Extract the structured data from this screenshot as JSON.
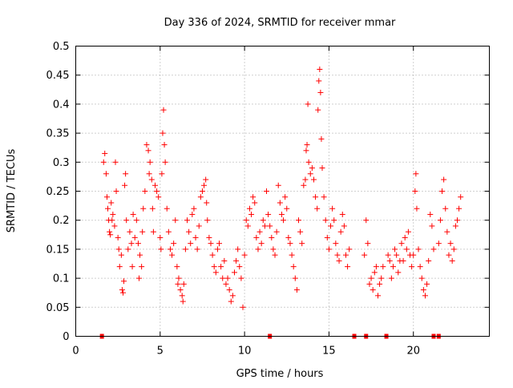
{
  "chart_data": {
    "type": "scatter",
    "title": "Day 336 of 2024, SRMTID for receiver mmar",
    "xlabel": "GPS time / hours",
    "ylabel": "SRMTID / TECUs",
    "xlim": [
      0,
      24.5
    ],
    "ylim": [
      0,
      0.5
    ],
    "x_ticks": [
      0,
      5,
      10,
      15,
      20
    ],
    "x_tick_labels": [
      "0",
      "5",
      "10",
      "15",
      "20"
    ],
    "y_ticks": [
      0,
      0.05,
      0.1,
      0.15,
      0.2,
      0.25,
      0.3,
      0.35,
      0.4,
      0.45,
      0.5
    ],
    "y_tick_labels": [
      "0",
      "0.05",
      "0.1",
      "0.15",
      "0.2",
      "0.25",
      "0.3",
      "0.35",
      "0.4",
      "0.45",
      "0.5"
    ],
    "grid": true,
    "marker": "+",
    "color": "#ff0000",
    "series": [
      {
        "name": "SRMTID",
        "points": [
          [
            1.65,
            0.3
          ],
          [
            1.72,
            0.315
          ],
          [
            1.8,
            0.28
          ],
          [
            1.85,
            0.24
          ],
          [
            1.9,
            0.22
          ],
          [
            1.95,
            0.2
          ],
          [
            2.0,
            0.18
          ],
          [
            2.05,
            0.175
          ],
          [
            2.1,
            0.23
          ],
          [
            2.15,
            0.2
          ],
          [
            2.2,
            0.21
          ],
          [
            2.3,
            0.19
          ],
          [
            2.35,
            0.3
          ],
          [
            2.4,
            0.25
          ],
          [
            2.5,
            0.17
          ],
          [
            2.55,
            0.15
          ],
          [
            2.6,
            0.12
          ],
          [
            2.7,
            0.14
          ],
          [
            2.75,
            0.08
          ],
          [
            2.8,
            0.075
          ],
          [
            2.85,
            0.095
          ],
          [
            2.9,
            0.26
          ],
          [
            2.95,
            0.28
          ],
          [
            3.0,
            0.2
          ],
          [
            3.1,
            0.15
          ],
          [
            3.2,
            0.18
          ],
          [
            3.3,
            0.16
          ],
          [
            3.35,
            0.12
          ],
          [
            3.4,
            0.21
          ],
          [
            3.5,
            0.17
          ],
          [
            3.6,
            0.2
          ],
          [
            3.7,
            0.16
          ],
          [
            3.75,
            0.1
          ],
          [
            3.8,
            0.14
          ],
          [
            3.9,
            0.12
          ],
          [
            3.95,
            0.18
          ],
          [
            4.0,
            0.22
          ],
          [
            4.1,
            0.25
          ],
          [
            4.2,
            0.33
          ],
          [
            4.3,
            0.32
          ],
          [
            4.35,
            0.28
          ],
          [
            4.4,
            0.3
          ],
          [
            4.5,
            0.27
          ],
          [
            4.55,
            0.22
          ],
          [
            4.6,
            0.18
          ],
          [
            4.7,
            0.26
          ],
          [
            4.8,
            0.25
          ],
          [
            4.9,
            0.24
          ],
          [
            5.0,
            0.17
          ],
          [
            5.05,
            0.15
          ],
          [
            5.1,
            0.28
          ],
          [
            5.15,
            0.35
          ],
          [
            5.2,
            0.39
          ],
          [
            5.25,
            0.33
          ],
          [
            5.3,
            0.3
          ],
          [
            5.4,
            0.22
          ],
          [
            5.5,
            0.18
          ],
          [
            5.6,
            0.15
          ],
          [
            5.7,
            0.14
          ],
          [
            5.8,
            0.16
          ],
          [
            5.9,
            0.2
          ],
          [
            6.0,
            0.12
          ],
          [
            6.05,
            0.09
          ],
          [
            6.1,
            0.1
          ],
          [
            6.2,
            0.08
          ],
          [
            6.3,
            0.07
          ],
          [
            6.35,
            0.06
          ],
          [
            6.4,
            0.09
          ],
          [
            6.5,
            0.15
          ],
          [
            6.6,
            0.2
          ],
          [
            6.7,
            0.18
          ],
          [
            6.8,
            0.16
          ],
          [
            6.9,
            0.21
          ],
          [
            7.0,
            0.22
          ],
          [
            7.1,
            0.17
          ],
          [
            7.2,
            0.15
          ],
          [
            7.3,
            0.19
          ],
          [
            7.4,
            0.24
          ],
          [
            7.5,
            0.25
          ],
          [
            7.6,
            0.26
          ],
          [
            7.7,
            0.27
          ],
          [
            7.75,
            0.23
          ],
          [
            7.8,
            0.2
          ],
          [
            7.9,
            0.17
          ],
          [
            8.0,
            0.16
          ],
          [
            8.1,
            0.14
          ],
          [
            8.2,
            0.12
          ],
          [
            8.3,
            0.11
          ],
          [
            8.4,
            0.15
          ],
          [
            8.5,
            0.16
          ],
          [
            8.6,
            0.12
          ],
          [
            8.7,
            0.1
          ],
          [
            8.8,
            0.13
          ],
          [
            8.9,
            0.09
          ],
          [
            9.0,
            0.1
          ],
          [
            9.1,
            0.08
          ],
          [
            9.2,
            0.06
          ],
          [
            9.3,
            0.07
          ],
          [
            9.4,
            0.11
          ],
          [
            9.5,
            0.13
          ],
          [
            9.6,
            0.15
          ],
          [
            9.7,
            0.12
          ],
          [
            9.8,
            0.1
          ],
          [
            9.9,
            0.05
          ],
          [
            10.0,
            0.14
          ],
          [
            10.1,
            0.2
          ],
          [
            10.2,
            0.19
          ],
          [
            10.3,
            0.22
          ],
          [
            10.4,
            0.21
          ],
          [
            10.5,
            0.24
          ],
          [
            10.6,
            0.23
          ],
          [
            10.7,
            0.17
          ],
          [
            10.8,
            0.15
          ],
          [
            10.9,
            0.18
          ],
          [
            11.0,
            0.16
          ],
          [
            11.1,
            0.2
          ],
          [
            11.2,
            0.19
          ],
          [
            11.3,
            0.25
          ],
          [
            11.4,
            0.21
          ],
          [
            11.5,
            0.19
          ],
          [
            11.6,
            0.17
          ],
          [
            11.7,
            0.15
          ],
          [
            11.8,
            0.14
          ],
          [
            11.9,
            0.18
          ],
          [
            12.0,
            0.26
          ],
          [
            12.1,
            0.23
          ],
          [
            12.2,
            0.21
          ],
          [
            12.3,
            0.2
          ],
          [
            12.4,
            0.24
          ],
          [
            12.5,
            0.22
          ],
          [
            12.6,
            0.17
          ],
          [
            12.7,
            0.16
          ],
          [
            12.8,
            0.14
          ],
          [
            12.9,
            0.12
          ],
          [
            13.0,
            0.1
          ],
          [
            13.1,
            0.08
          ],
          [
            13.2,
            0.2
          ],
          [
            13.3,
            0.18
          ],
          [
            13.4,
            0.16
          ],
          [
            13.5,
            0.26
          ],
          [
            13.6,
            0.27
          ],
          [
            13.65,
            0.32
          ],
          [
            13.7,
            0.33
          ],
          [
            13.75,
            0.4
          ],
          [
            13.8,
            0.3
          ],
          [
            13.9,
            0.28
          ],
          [
            14.0,
            0.29
          ],
          [
            14.1,
            0.27
          ],
          [
            14.2,
            0.24
          ],
          [
            14.3,
            0.22
          ],
          [
            14.35,
            0.39
          ],
          [
            14.4,
            0.44
          ],
          [
            14.45,
            0.46
          ],
          [
            14.5,
            0.42
          ],
          [
            14.55,
            0.34
          ],
          [
            14.6,
            0.29
          ],
          [
            14.7,
            0.24
          ],
          [
            14.8,
            0.2
          ],
          [
            14.9,
            0.17
          ],
          [
            15.0,
            0.15
          ],
          [
            15.1,
            0.19
          ],
          [
            15.2,
            0.22
          ],
          [
            15.3,
            0.2
          ],
          [
            15.4,
            0.16
          ],
          [
            15.5,
            0.14
          ],
          [
            15.6,
            0.13
          ],
          [
            15.7,
            0.18
          ],
          [
            15.8,
            0.21
          ],
          [
            15.9,
            0.19
          ],
          [
            16.0,
            0.14
          ],
          [
            16.1,
            0.12
          ],
          [
            16.2,
            0.15
          ],
          [
            17.1,
            0.14
          ],
          [
            17.2,
            0.2
          ],
          [
            17.3,
            0.16
          ],
          [
            17.4,
            0.09
          ],
          [
            17.5,
            0.1
          ],
          [
            17.6,
            0.08
          ],
          [
            17.7,
            0.11
          ],
          [
            17.8,
            0.12
          ],
          [
            17.9,
            0.07
          ],
          [
            18.0,
            0.09
          ],
          [
            18.1,
            0.1
          ],
          [
            18.2,
            0.12
          ],
          [
            18.5,
            0.14
          ],
          [
            18.6,
            0.13
          ],
          [
            18.7,
            0.1
          ],
          [
            18.8,
            0.12
          ],
          [
            18.9,
            0.15
          ],
          [
            19.0,
            0.14
          ],
          [
            19.1,
            0.11
          ],
          [
            19.2,
            0.13
          ],
          [
            19.3,
            0.16
          ],
          [
            19.4,
            0.13
          ],
          [
            19.5,
            0.17
          ],
          [
            19.6,
            0.15
          ],
          [
            19.7,
            0.18
          ],
          [
            19.8,
            0.14
          ],
          [
            19.9,
            0.12
          ],
          [
            20.0,
            0.14
          ],
          [
            20.1,
            0.25
          ],
          [
            20.15,
            0.28
          ],
          [
            20.2,
            0.22
          ],
          [
            20.3,
            0.15
          ],
          [
            20.4,
            0.12
          ],
          [
            20.5,
            0.1
          ],
          [
            20.6,
            0.08
          ],
          [
            20.7,
            0.07
          ],
          [
            20.8,
            0.09
          ],
          [
            20.9,
            0.13
          ],
          [
            21.0,
            0.21
          ],
          [
            21.1,
            0.19
          ],
          [
            21.2,
            0.15
          ],
          [
            21.5,
            0.16
          ],
          [
            21.6,
            0.2
          ],
          [
            21.7,
            0.25
          ],
          [
            21.8,
            0.27
          ],
          [
            21.9,
            0.22
          ],
          [
            22.0,
            0.18
          ],
          [
            22.1,
            0.14
          ],
          [
            22.2,
            0.16
          ],
          [
            22.3,
            0.13
          ],
          [
            22.4,
            0.15
          ],
          [
            22.5,
            0.19
          ],
          [
            22.6,
            0.2
          ],
          [
            22.7,
            0.22
          ],
          [
            22.8,
            0.24
          ]
        ],
        "zero_points": [
          1.55,
          11.5,
          16.5,
          17.2,
          18.4,
          21.2,
          21.5
        ]
      }
    ]
  }
}
